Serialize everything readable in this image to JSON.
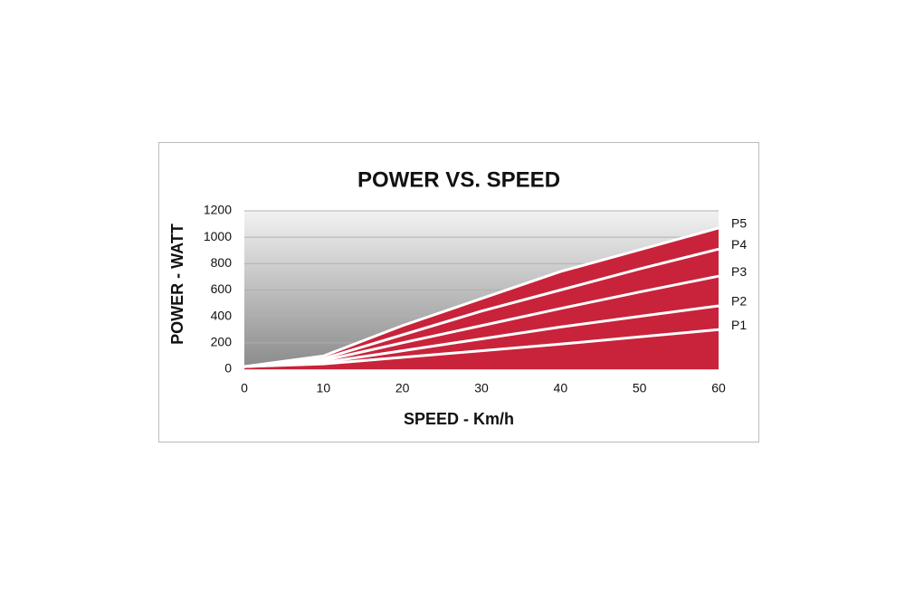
{
  "chart_data": {
    "type": "area",
    "title": "POWER VS. SPEED",
    "x_label": "SPEED - Km/h",
    "y_label": "POWER - WATT",
    "x": [
      0,
      10,
      20,
      30,
      40,
      50,
      60
    ],
    "series": [
      {
        "name": "P1",
        "color": "#ffffff",
        "values": [
          20,
          40,
          90,
          140,
          190,
          245,
          300
        ]
      },
      {
        "name": "P2",
        "color": "#ffffff",
        "values": [
          20,
          50,
          140,
          230,
          320,
          400,
          480
        ]
      },
      {
        "name": "P3",
        "color": "#ffffff",
        "values": [
          20,
          65,
          200,
          330,
          460,
          585,
          705
        ]
      },
      {
        "name": "P4",
        "color": "#ffffff",
        "values": [
          20,
          80,
          260,
          440,
          600,
          760,
          910
        ]
      },
      {
        "name": "P5",
        "color": "#ffffff",
        "values": [
          20,
          100,
          330,
          535,
          740,
          905,
          1070
        ]
      }
    ],
    "area_color": "#c8233a",
    "xlim": [
      0,
      60
    ],
    "xticks": [
      0,
      10,
      20,
      30,
      40,
      50,
      60
    ],
    "ylim": [
      0,
      1200
    ],
    "yticks": [
      0,
      200,
      400,
      600,
      800,
      1000,
      1200
    ],
    "grid": true
  }
}
